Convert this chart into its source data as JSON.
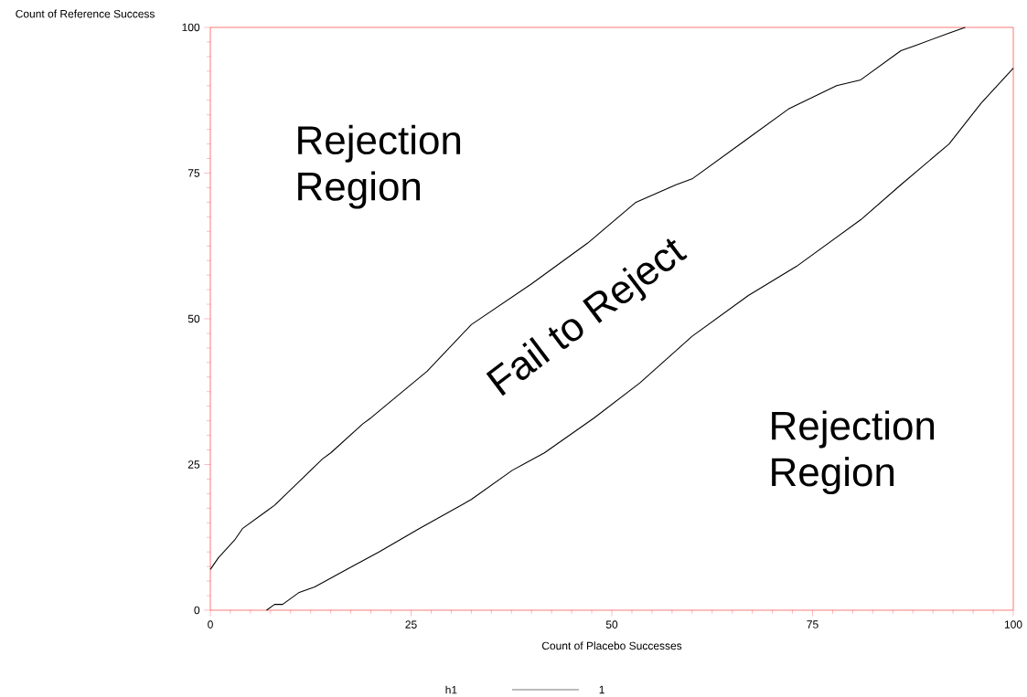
{
  "chart_data": {
    "type": "line",
    "xlabel": "Count of Placebo Successes",
    "ylabel": "Count of Reference Success",
    "legend_title": "h1",
    "legend": "bottom",
    "marker": "none",
    "line_style": "solid",
    "xlim": [
      0,
      100
    ],
    "ylim": [
      0,
      100
    ],
    "xticks": [
      0,
      25,
      50,
      75,
      100
    ],
    "yticks": [
      0,
      25,
      50,
      75,
      100
    ],
    "annotations": [
      "Rejection Region",
      "Rejection Region",
      "Fail to Reject"
    ],
    "series": [
      {
        "name": "1",
        "color": "#000000",
        "x": [
          0,
          1,
          3,
          4,
          7,
          8,
          11,
          14,
          15,
          19,
          20,
          27,
          32.5,
          40,
          47,
          53,
          58,
          60,
          67,
          72,
          78,
          81,
          86,
          88,
          92,
          94
        ],
        "values": [
          7,
          9,
          12,
          14,
          17,
          18,
          22,
          26,
          27,
          32,
          33,
          41,
          49,
          56,
          63,
          70,
          73,
          74,
          81,
          86,
          90,
          91,
          96,
          97,
          99,
          100
        ]
      },
      {
        "color": "#000000",
        "x": [
          7,
          8,
          9,
          11,
          13,
          17,
          21,
          26,
          32.5,
          37.6,
          41.6,
          47.8,
          53.5,
          60,
          67,
          73,
          81,
          86,
          92,
          96,
          100
        ],
        "values": [
          0,
          1,
          1,
          3,
          4,
          7,
          10,
          14,
          19,
          24,
          27,
          33,
          39,
          47,
          54,
          59,
          67,
          73,
          80,
          87,
          93
        ]
      }
    ]
  }
}
